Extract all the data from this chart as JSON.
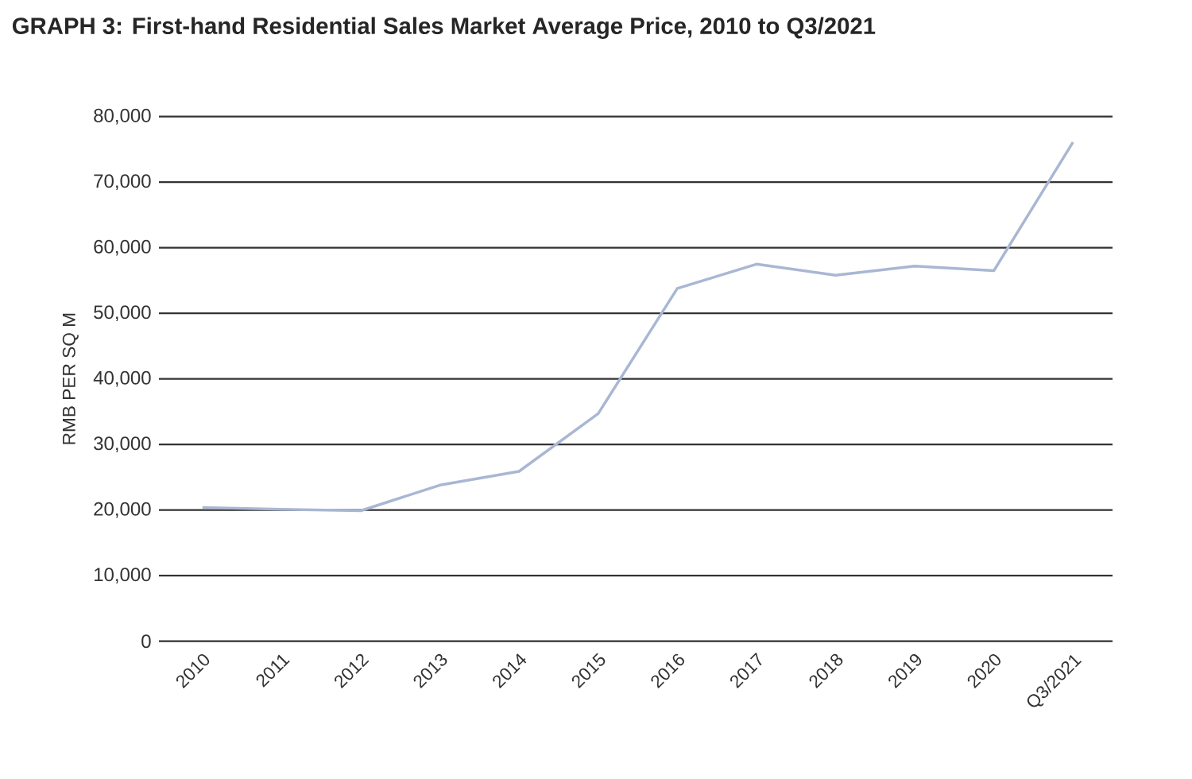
{
  "chart_data": {
    "type": "line",
    "title": "GRAPH 3: First-hand Residential Sales Market Average Price, 2010 to Q3/2021",
    "ylabel": "RMB PER SQ M",
    "categories": [
      "2010",
      "2011",
      "2012",
      "2013",
      "2014",
      "2015",
      "2016",
      "2017",
      "2018",
      "2019",
      "2020",
      "Q3/2021"
    ],
    "series": [
      {
        "color": "#a9b7d3",
        "values": [
          20400,
          20100,
          19900,
          23800,
          25900,
          34700,
          53800,
          57500,
          55800,
          57200,
          56500,
          76100
        ]
      }
    ],
    "ylim": [
      0,
      80000
    ],
    "yticks": [
      {
        "value": 0,
        "label": "0"
      },
      {
        "value": 10000,
        "label": "10,000"
      },
      {
        "value": 20000,
        "label": "20,000"
      },
      {
        "value": 30000,
        "label": "30,000"
      },
      {
        "value": 40000,
        "label": "40,000"
      },
      {
        "value": 50000,
        "label": "50,000"
      },
      {
        "value": 60000,
        "label": "60,000"
      },
      {
        "value": 70000,
        "label": "70,000"
      },
      {
        "value": 80000,
        "label": "80,000"
      }
    ],
    "grid": "y"
  }
}
